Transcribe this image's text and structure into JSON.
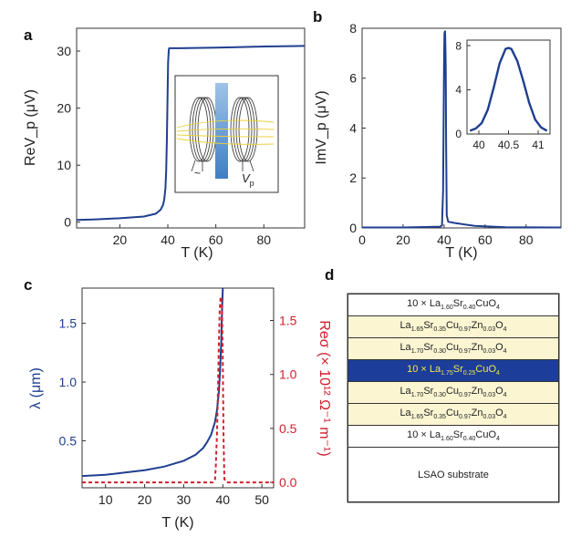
{
  "panel_labels": [
    "a",
    "b",
    "c",
    "d"
  ],
  "colors": {
    "blue": "#1f3f8f",
    "red": "#d0202e",
    "beige": "#fbf5d2",
    "highlight": "#1d3d9a"
  },
  "chart_data": [
    {
      "id": "a",
      "type": "line",
      "xlabel": "T (K)",
      "ylabel": "ReV_p (μV)",
      "xlim": [
        2,
        97
      ],
      "ylim": [
        -1,
        34
      ],
      "xticks": [
        "20",
        "40",
        "60",
        "80"
      ],
      "yticks": [
        "0",
        "10",
        "20",
        "30"
      ],
      "series": [
        {
          "x": [
            2,
            10,
            20,
            30,
            35,
            37,
            38,
            38.5,
            39,
            39.3,
            39.6,
            39.9,
            40.1,
            40.4,
            40.6,
            45,
            60,
            80,
            97
          ],
          "y": [
            0.4,
            0.5,
            0.7,
            1.0,
            1.5,
            2.2,
            3.0,
            4.0,
            6.0,
            9.0,
            14.0,
            22.0,
            28.0,
            30.3,
            30.5,
            30.5,
            30.6,
            30.8,
            30.9
          ]
        }
      ],
      "inset_diagram": {
        "labels": [
          "~",
          "V_p"
        ]
      }
    },
    {
      "id": "b",
      "type": "line",
      "xlabel": "T (K)",
      "ylabel": "ImV_p (μV)",
      "xlim": [
        0,
        97
      ],
      "ylim": [
        0,
        8
      ],
      "xticks": [
        "0",
        "20",
        "40",
        "60",
        "80"
      ],
      "yticks": [
        "0",
        "2",
        "4",
        "6",
        "8"
      ],
      "series": [
        {
          "x": [
            0,
            20,
            38,
            39,
            39.5,
            39.8,
            40.0,
            40.2,
            40.5,
            40.8,
            41.0,
            41.3,
            42,
            45,
            55,
            70,
            97
          ],
          "y": [
            0.02,
            0.02,
            0.05,
            0.1,
            1.5,
            4.5,
            6.8,
            7.8,
            7.9,
            6.5,
            3.5,
            0.5,
            0.25,
            0.2,
            0.08,
            0.03,
            0.02
          ]
        }
      ],
      "inset": {
        "xlim": [
          39.8,
          41.2
        ],
        "ylim": [
          0,
          8.5
        ],
        "xticks": [
          "40",
          "40.5",
          "41"
        ],
        "yticks": [
          "0",
          "4",
          "8"
        ],
        "x": [
          39.85,
          39.95,
          40.05,
          40.15,
          40.25,
          40.35,
          40.45,
          40.5,
          40.55,
          40.65,
          40.75,
          40.85,
          40.95,
          41.05,
          41.15
        ],
        "y": [
          0.3,
          0.5,
          1.0,
          2.2,
          4.2,
          6.4,
          7.7,
          7.8,
          7.7,
          6.6,
          4.8,
          2.8,
          1.3,
          0.6,
          0.3
        ]
      }
    },
    {
      "id": "c",
      "type": "line",
      "xlabel": "T (K)",
      "ylabel_left": "λ (μm)",
      "ylabel_right": "Reσ (× 10¹² Ω⁻¹ m⁻¹)",
      "xlim": [
        4,
        53
      ],
      "ylim_left": [
        0.1,
        1.8
      ],
      "ylim_right": [
        -0.05,
        1.8
      ],
      "xticks": [
        "10",
        "20",
        "30",
        "40",
        "50"
      ],
      "yticks_left": [
        "0.5",
        "1.0",
        "1.5"
      ],
      "yticks_right": [
        "0.0",
        "0.5",
        "1.0",
        "1.5"
      ],
      "series": [
        {
          "axis": "left",
          "x": [
            4,
            10,
            15,
            20,
            25,
            30,
            33,
            35,
            36,
            37,
            38,
            38.5,
            39,
            39.3,
            39.6,
            39.8,
            40
          ],
          "y": [
            0.2,
            0.21,
            0.23,
            0.25,
            0.28,
            0.33,
            0.38,
            0.44,
            0.49,
            0.55,
            0.66,
            0.76,
            0.92,
            1.1,
            1.35,
            1.6,
            1.8
          ]
        },
        {
          "axis": "right",
          "style": "dashed",
          "x": [
            4,
            30,
            37.5,
            38.0,
            38.2,
            38.5,
            38.8,
            39.0,
            39.2,
            39.4,
            39.6,
            39.8,
            40.0,
            40.2,
            40.4,
            41,
            53
          ],
          "y": [
            0,
            0,
            0,
            0.02,
            0.15,
            0.45,
            0.9,
            1.3,
            1.6,
            1.7,
            1.72,
            1.6,
            1.1,
            0.4,
            0.03,
            0,
            0
          ]
        }
      ]
    }
  ],
  "layer_stack": {
    "layers": [
      {
        "prefix": "10 × ",
        "formula": [
          [
            "La",
            "1.60"
          ],
          [
            "Sr",
            "0.40"
          ],
          [
            "Cu",
            ""
          ],
          [
            "O",
            "4"
          ]
        ],
        "fill": "#ffffff"
      },
      {
        "prefix": "",
        "formula": [
          [
            "La",
            "1.65"
          ],
          [
            "Sr",
            "0.35"
          ],
          [
            "Cu",
            "0.97"
          ],
          [
            "Zn",
            "0.03"
          ],
          [
            "O",
            "4"
          ]
        ],
        "fill": "#fbf5d2"
      },
      {
        "prefix": "",
        "formula": [
          [
            "La",
            "1.70"
          ],
          [
            "Sr",
            "0.30"
          ],
          [
            "Cu",
            "0.97"
          ],
          [
            "Zn",
            "0.03"
          ],
          [
            "O",
            "4"
          ]
        ],
        "fill": "#fbf5d2"
      },
      {
        "prefix": "10 × ",
        "formula": [
          [
            "La",
            "1.75"
          ],
          [
            "Sr",
            "0.25"
          ],
          [
            "Cu",
            ""
          ],
          [
            "O",
            "4"
          ]
        ],
        "fill": "#1d3d9a",
        "highlight": true
      },
      {
        "prefix": "",
        "formula": [
          [
            "La",
            "1.70"
          ],
          [
            "Sr",
            "0.30"
          ],
          [
            "Cu",
            "0.97"
          ],
          [
            "Zn",
            "0.03"
          ],
          [
            "O",
            "4"
          ]
        ],
        "fill": "#fbf5d2"
      },
      {
        "prefix": "",
        "formula": [
          [
            "La",
            "1.65"
          ],
          [
            "Sr",
            "0.35"
          ],
          [
            "Cu",
            "0.97"
          ],
          [
            "Zn",
            "0.03"
          ],
          [
            "O",
            "4"
          ]
        ],
        "fill": "#fbf5d2"
      },
      {
        "prefix": "10 × ",
        "formula": [
          [
            "La",
            "1.60"
          ],
          [
            "Sr",
            "0.40"
          ],
          [
            "Cu",
            ""
          ],
          [
            "O",
            "4"
          ]
        ],
        "fill": "#ffffff"
      }
    ],
    "substrate": "LSAO substrate"
  }
}
